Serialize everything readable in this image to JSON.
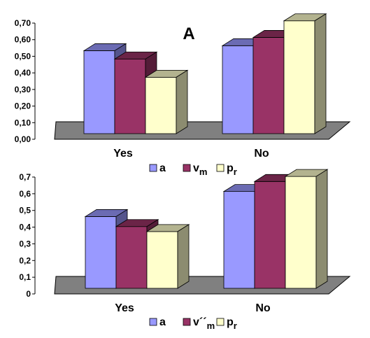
{
  "chart_data": [
    {
      "type": "bar",
      "title": "A",
      "categories": [
        "Yes",
        "No"
      ],
      "series": [
        {
          "name": "a",
          "name_sub": "",
          "values": [
            0.5,
            0.53
          ]
        },
        {
          "name": "v",
          "name_sub": "m",
          "values": [
            0.45,
            0.58
          ]
        },
        {
          "name": "p",
          "name_sub": "r",
          "values": [
            0.34,
            0.68
          ]
        }
      ],
      "yticks": [
        "0,00",
        "0,10",
        "0,20",
        "0,30",
        "0,40",
        "0,50",
        "0,60",
        "0,70"
      ],
      "ylim": [
        0,
        0.7
      ],
      "grid": false,
      "legend": "bottom",
      "colors": [
        "#9999ff",
        "#993366",
        "#ffffcc"
      ]
    },
    {
      "type": "bar",
      "title": "",
      "categories": [
        "Yes",
        "No"
      ],
      "series": [
        {
          "name": "a",
          "name_sub": "",
          "values": [
            0.43,
            0.58
          ]
        },
        {
          "name": "v´´",
          "name_sub": "m",
          "values": [
            0.37,
            0.64
          ]
        },
        {
          "name": "p",
          "name_sub": "r",
          "values": [
            0.34,
            0.67
          ]
        }
      ],
      "yticks": [
        "0",
        "0,1",
        "0,2",
        "0,3",
        "0,4",
        "0,5",
        "0,6",
        "0,7"
      ],
      "ylim": [
        0,
        0.7
      ],
      "grid": false,
      "legend": "bottom",
      "colors": [
        "#9999ff",
        "#993366",
        "#ffffcc"
      ]
    }
  ]
}
